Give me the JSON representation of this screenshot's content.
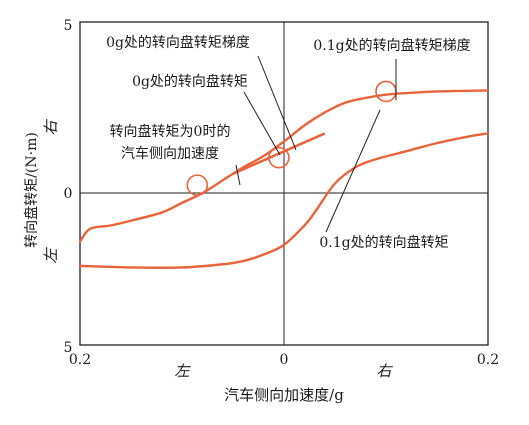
{
  "chart_data": {
    "type": "line",
    "title": "",
    "xlabel": "汽车侧向加速度/g",
    "ylabel": "转向盘转矩/(N·m)",
    "x_tick_labels": [
      "0.2",
      "0",
      "0.2"
    ],
    "x_side_labels": {
      "left": "左",
      "right": "右"
    },
    "y_tick_labels": [
      "5",
      "0",
      "5"
    ],
    "y_side_labels": {
      "top": "右",
      "bottom": "左"
    },
    "xlim": [
      -0.2,
      0.2
    ],
    "ylim": [
      -5,
      5
    ],
    "accent_color": "#e8643c",
    "series": [
      {
        "key": "upper",
        "x": [
          -0.2,
          -0.19,
          -0.17,
          -0.15,
          -0.12,
          -0.1,
          -0.08,
          -0.06,
          -0.04,
          -0.02,
          0.0,
          0.02,
          0.04,
          0.06,
          0.08,
          0.1,
          0.12,
          0.15,
          0.18,
          0.2
        ],
        "y": [
          -1.8,
          -1.4,
          -1.3,
          -1.15,
          -0.9,
          -0.6,
          -0.3,
          0.1,
          0.5,
          0.85,
          1.3,
          1.8,
          2.2,
          2.5,
          2.65,
          2.75,
          2.8,
          2.85,
          2.87,
          2.88
        ]
      },
      {
        "key": "lower",
        "x": [
          -0.2,
          -0.15,
          -0.1,
          -0.06,
          -0.04,
          -0.02,
          0.0,
          0.02,
          0.03,
          0.05,
          0.07,
          0.09,
          0.12,
          0.15,
          0.18,
          0.2
        ],
        "y": [
          -2.55,
          -2.6,
          -2.6,
          -2.5,
          -2.4,
          -2.2,
          -1.9,
          -1.3,
          -0.9,
          0.0,
          0.5,
          0.75,
          1.0,
          1.25,
          1.45,
          1.55
        ]
      }
    ],
    "markers": [
      {
        "key": "zero_torque",
        "x": -0.085,
        "y": -0.05
      },
      {
        "key": "zero_g",
        "x": -0.005,
        "y": 0.8
      },
      {
        "key": "point1g",
        "x": 0.1,
        "y": 2.85
      }
    ],
    "gradient_segment": {
      "x": [
        -0.05,
        0.04
      ],
      "y": [
        0.3,
        1.55
      ]
    },
    "annotations": [
      {
        "key": "zero_g_gradient",
        "lines": [
          "0g处的转向盘转矩梯度"
        ]
      },
      {
        "key": "point1g_gradient",
        "lines": [
          "0.1g处的转向盘转矩梯度"
        ]
      },
      {
        "key": "zero_g_torque",
        "lines": [
          "0g处的转向盘转矩"
        ]
      },
      {
        "key": "zero_torque_accel",
        "lines": [
          "转向盘转矩为0时的",
          "汽车侧向加速度"
        ]
      },
      {
        "key": "point1g_torque",
        "lines": [
          "0.1g处的转向盘转矩"
        ]
      }
    ]
  }
}
